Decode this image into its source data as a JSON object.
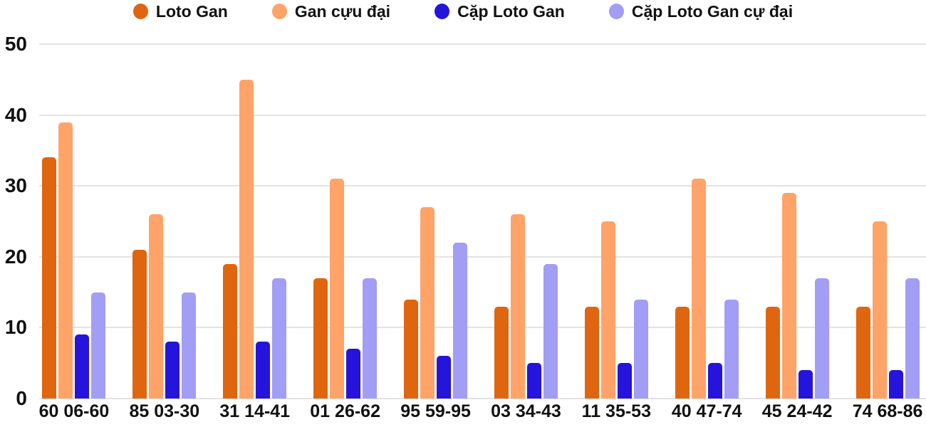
{
  "colors": {
    "grid": "#E3E3E3",
    "text": "#111111",
    "background": "#FFFFFF"
  },
  "chart_data": {
    "type": "bar",
    "title": "",
    "xlabel": "",
    "ylabel": "",
    "ylim": [
      0,
      50
    ],
    "yticks": [
      0,
      10,
      20,
      30,
      40,
      50
    ],
    "grid": true,
    "legend_position": "top",
    "categories": [
      "60 06-60",
      "85 03-30",
      "31 14-41",
      "01 26-62",
      "95 59-95",
      "03 34-43",
      "11 35-53",
      "40 47-74",
      "45 24-42",
      "74 68-86"
    ],
    "series": [
      {
        "name": "Loto Gan",
        "color": "#E0650F",
        "values": [
          34,
          21,
          19,
          17,
          14,
          13,
          13,
          13,
          13,
          13
        ]
      },
      {
        "name": "Gan cựu đại",
        "color": "#FFA369",
        "values": [
          39,
          26,
          45,
          31,
          27,
          26,
          25,
          31,
          29,
          25
        ]
      },
      {
        "name": "Cặp Loto Gan",
        "color": "#2414DC",
        "values": [
          9,
          8,
          8,
          7,
          6,
          5,
          5,
          5,
          4,
          4
        ]
      },
      {
        "name": "Cặp Loto Gan cự đại",
        "color": "#A29DF5",
        "values": [
          15,
          15,
          17,
          17,
          22,
          19,
          14,
          14,
          17,
          17
        ]
      }
    ]
  }
}
